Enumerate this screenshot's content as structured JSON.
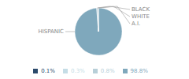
{
  "chart_data": {
    "type": "pie",
    "categories": [
      "HISPANIC",
      "BLACK",
      "WHITE",
      "A.I."
    ],
    "values": [
      98.8,
      0.8,
      0.3,
      0.1
    ],
    "value_labels": [
      "98.8%",
      "0.8%",
      "0.3%",
      "0.1%"
    ],
    "colors": [
      "#7fa8bc",
      "#b8cfd8",
      "#c5dde6",
      "#2b4a6b"
    ],
    "legend": "bottom"
  }
}
